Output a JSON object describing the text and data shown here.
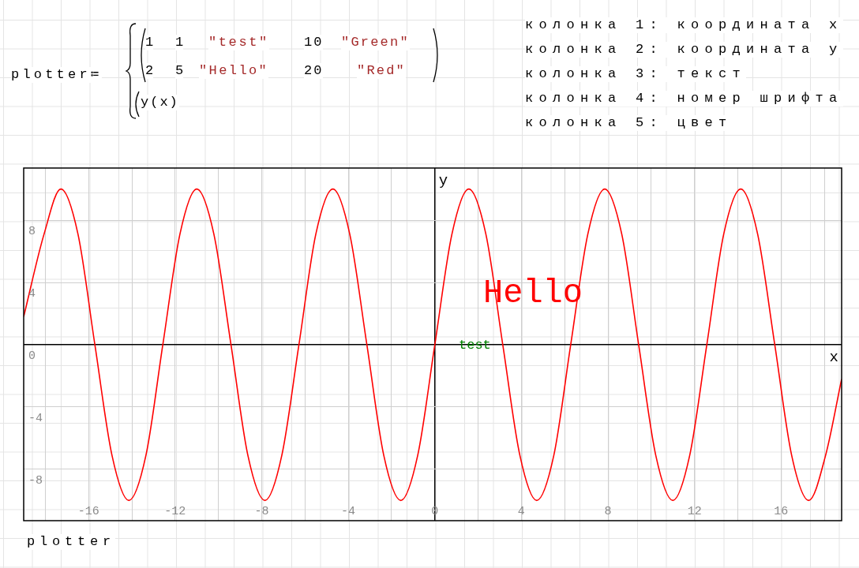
{
  "chart_data": {
    "type": "line",
    "xlabel": "x",
    "ylabel": "y",
    "x": [
      -19.0,
      -18.06,
      -17.28,
      -16.49,
      -15.71,
      -14.92,
      -14.14,
      -13.35,
      -12.57,
      -11.78,
      -11.0,
      -10.21,
      -9.42,
      -8.64,
      -7.85,
      -7.07,
      -6.28,
      -5.5,
      -4.71,
      -3.93,
      -3.14,
      -2.36,
      -1.57,
      -0.79,
      0,
      0.79,
      1.57,
      2.36,
      3.14,
      3.93,
      4.71,
      5.5,
      6.28,
      7.07,
      7.85,
      8.64,
      9.42,
      10.21,
      11.0,
      11.78,
      12.57,
      13.35,
      14.14,
      14.92,
      15.71,
      16.49,
      17.28,
      18.06,
      18.8
    ],
    "series": [
      {
        "color": "#ff0000",
        "values": [
          1.8,
          7.1,
          10,
          7.1,
          0,
          -7.1,
          -10,
          -7.1,
          0,
          7.1,
          10,
          7.1,
          0,
          -7.1,
          -10,
          -7.1,
          0,
          7.1,
          10,
          7.1,
          0,
          -7.1,
          -10,
          -7.1,
          0,
          7.1,
          10,
          7.1,
          0,
          -7.1,
          -10,
          -7.1,
          0,
          7.1,
          10,
          7.1,
          0,
          -7.1,
          -10,
          -7.1,
          0,
          7.1,
          10,
          7.1,
          0,
          -7.1,
          -10,
          -7.1,
          -2.2
        ]
      }
    ],
    "xlim": [
      -19.0,
      18.8
    ],
    "ylim": [
      -11.3,
      11.35
    ],
    "xticks": [
      {
        "value": -18,
        "label": null
      },
      -16,
      {
        "value": -14,
        "label": null
      },
      -12,
      {
        "value": -10,
        "label": null
      },
      -8,
      {
        "value": -6,
        "label": null
      },
      -4,
      {
        "value": -2,
        "label": null
      },
      0,
      {
        "value": 2,
        "label": null
      },
      4,
      {
        "value": 6,
        "label": null
      },
      8,
      {
        "value": 10,
        "label": null
      },
      12,
      {
        "value": 14,
        "label": null
      },
      16,
      {
        "value": 18,
        "label": null
      }
    ],
    "yticks": [
      -8,
      -4,
      0,
      4,
      8
    ],
    "grid": true,
    "marker": "none",
    "line_style": "solid",
    "annotations": [
      "plotter≔",
      "1",
      "1",
      "\"test\"",
      "10",
      "\"Green\"",
      "2",
      "5",
      "\"Hello\"",
      "20",
      "\"Red\"",
      "y(x)",
      "колонка 1: координата x",
      "колонка 2: координата y",
      "колонка 3: текст",
      "колонка 4: номер шрифта",
      "колонка 5: цвет",
      "plotter",
      "test",
      "Hello"
    ]
  }
}
